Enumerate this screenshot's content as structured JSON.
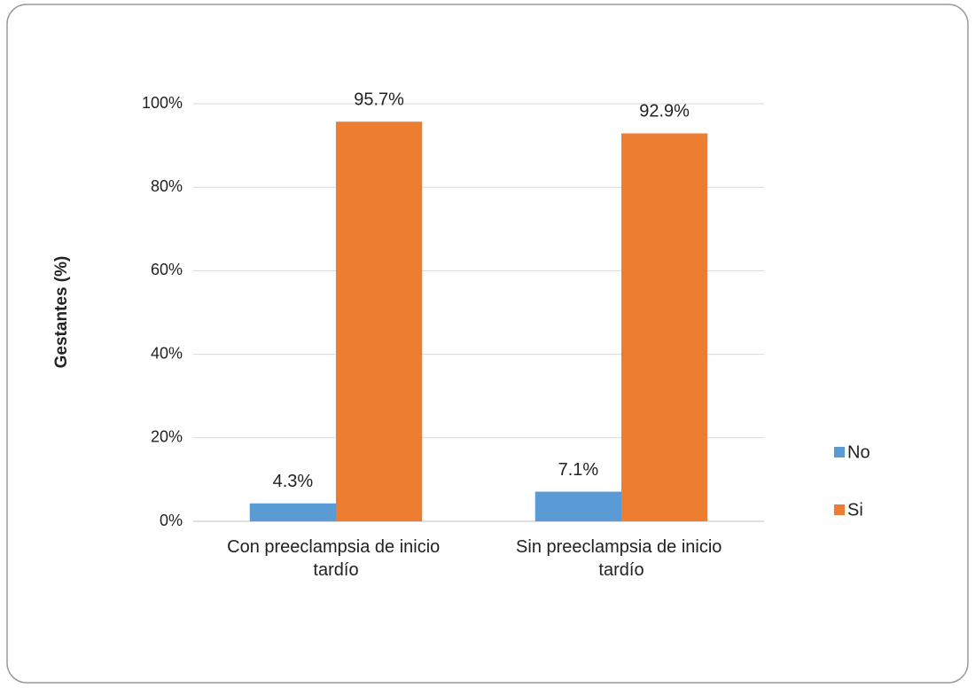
{
  "chart_data": {
    "type": "bar",
    "y_axis_label": "Gestantes (%)",
    "categories": [
      "Con preeclampsia de inicio tardío",
      "Sin preeclampsia de inicio tardío"
    ],
    "series": [
      {
        "name": "No",
        "color": "#5b9bd5",
        "values": [
          4.3,
          7.1
        ],
        "value_labels": [
          "4.3%",
          "7.1%"
        ]
      },
      {
        "name": "Si",
        "color": "#ed7d31",
        "values": [
          95.7,
          92.9
        ],
        "value_labels": [
          "95.7%",
          "92.9%"
        ]
      }
    ],
    "ylim": [
      0,
      100
    ],
    "yticks": [
      {
        "value": 0,
        "label": "0%"
      },
      {
        "value": 20,
        "label": "20%"
      },
      {
        "value": 40,
        "label": "40%"
      },
      {
        "value": 60,
        "label": "60%"
      },
      {
        "value": 80,
        "label": "80%"
      },
      {
        "value": 100,
        "label": "100%"
      }
    ],
    "grid": true,
    "legend": "right"
  }
}
